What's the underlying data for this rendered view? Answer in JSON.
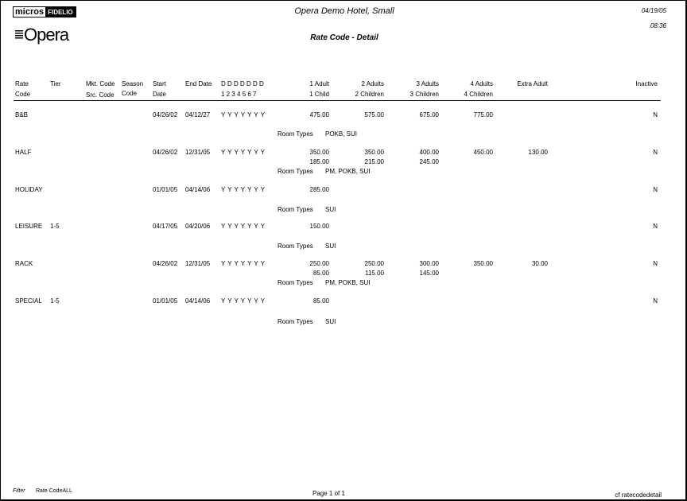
{
  "header": {
    "hotel": "Opera Demo Hotel, Small",
    "title": "Rate Code - Detail",
    "date": "04/19/05",
    "time": "08:36",
    "logo_micros": "micros",
    "logo_fidelio": "FIDELIO",
    "logo_opera": "Opera"
  },
  "columns": {
    "rate_code": [
      "Rate",
      "Code"
    ],
    "tier": "Tier",
    "mkt_code": "Mkt. Code",
    "src_code": "Src. Code",
    "season": [
      "Season",
      "Code"
    ],
    "start": [
      "Start",
      "Date"
    ],
    "end_date": "End Date",
    "days_top": "D D D D D D D",
    "days_bottom": "1 2 3 4 5 6 7",
    "a1": [
      "1 Adult",
      "1 Child"
    ],
    "a2": [
      "2 Adults",
      "2 Children"
    ],
    "a3": [
      "3 Adults",
      "3 Children"
    ],
    "a4": [
      "4 Adults",
      "4 Children"
    ],
    "extra": "Extra Adult",
    "inactive": "Inactive"
  },
  "room_types_label": "Room Types",
  "rows": [
    {
      "code": "B&B",
      "tier": "",
      "start": "04/26/02",
      "end": "04/12/27",
      "days": "Y Y Y Y Y Y Y",
      "adults": [
        "475.00",
        "575.00",
        "675.00",
        "775.00"
      ],
      "children": [
        "",
        "",
        "",
        ""
      ],
      "extra": "",
      "room_types": "POKB, SUI",
      "inactive": "N"
    },
    {
      "code": "HALF",
      "tier": "",
      "start": "04/26/02",
      "end": "12/31/05",
      "days": "Y Y Y Y Y Y Y",
      "adults": [
        "350.00",
        "350.00",
        "400.00",
        "450.00"
      ],
      "children": [
        "185.00",
        "215.00",
        "245.00",
        ""
      ],
      "extra": "130.00",
      "room_types": "PM, POKB, SUI",
      "inactive": "N"
    },
    {
      "code": "HOLIDAY",
      "tier": "",
      "start": "01/01/05",
      "end": "04/14/06",
      "days": "Y Y Y Y Y Y Y",
      "adults": [
        "285.00",
        "",
        "",
        ""
      ],
      "children": [
        "",
        "",
        "",
        ""
      ],
      "extra": "",
      "room_types": "SUI",
      "inactive": "N"
    },
    {
      "code": "LEISURE",
      "tier": "1-5",
      "start": "04/17/05",
      "end": "04/20/06",
      "days": "Y Y Y Y Y Y Y",
      "adults": [
        "150.00",
        "",
        "",
        ""
      ],
      "children": [
        "",
        "",
        "",
        ""
      ],
      "extra": "",
      "room_types": "SUI",
      "inactive": "N"
    },
    {
      "code": "RACK",
      "tier": "",
      "start": "04/26/02",
      "end": "12/31/05",
      "days": "Y Y Y Y Y Y Y",
      "adults": [
        "250.00",
        "250.00",
        "300.00",
        "350.00"
      ],
      "children": [
        "85.00",
        "115.00",
        "145.00",
        ""
      ],
      "extra": "30.00",
      "room_types": "PM, POKB, SUI",
      "inactive": "N"
    },
    {
      "code": "SPECIAL",
      "tier": "1-5",
      "start": "01/01/05",
      "end": "04/14/06",
      "days": "Y Y Y Y Y Y Y",
      "adults": [
        "85.00",
        "",
        "",
        ""
      ],
      "children": [
        "",
        "",
        "",
        ""
      ],
      "extra": "",
      "room_types": "SUI",
      "inactive": "N"
    }
  ],
  "footer": {
    "filter_label": "Filter",
    "filter_value": "Rate CodeALL",
    "page": "Page 1 of 1",
    "report": "cf  ratecodedetail"
  }
}
